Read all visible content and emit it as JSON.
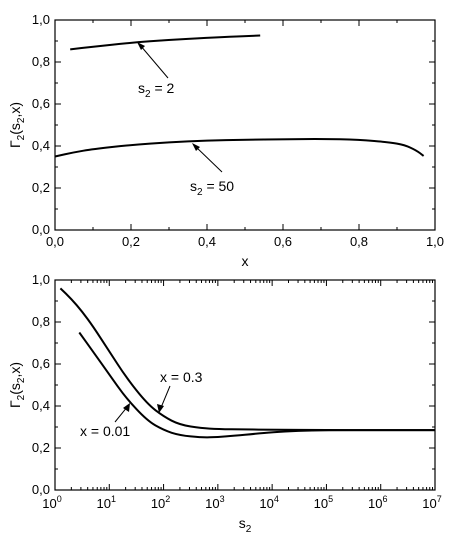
{
  "chart_data": [
    {
      "type": "line",
      "xlabel": "x",
      "ylabel": "Γ2(s2, x)",
      "xlim": [
        0.0,
        1.0
      ],
      "ylim": [
        0.0,
        1.0
      ],
      "grid": false,
      "x_ticks": [
        "0,0",
        "0,2",
        "0,4",
        "0,6",
        "0,8",
        "1,0"
      ],
      "y_ticks": [
        "0,0",
        "0,2",
        "0,4",
        "0,6",
        "0,8",
        "1,0"
      ],
      "series": [
        {
          "label": "s2 = 2",
          "points": [
            [
              0.04,
              0.86
            ],
            [
              0.1,
              0.873
            ],
            [
              0.2,
              0.892
            ],
            [
              0.3,
              0.905
            ],
            [
              0.4,
              0.915
            ],
            [
              0.48,
              0.922
            ],
            [
              0.54,
              0.926
            ]
          ]
        },
        {
          "label": "s2 = 50",
          "points": [
            [
              0.0,
              0.35
            ],
            [
              0.05,
              0.37
            ],
            [
              0.1,
              0.385
            ],
            [
              0.2,
              0.405
            ],
            [
              0.3,
              0.418
            ],
            [
              0.4,
              0.426
            ],
            [
              0.5,
              0.43
            ],
            [
              0.6,
              0.432
            ],
            [
              0.7,
              0.434
            ],
            [
              0.8,
              0.43
            ],
            [
              0.88,
              0.418
            ],
            [
              0.92,
              0.405
            ],
            [
              0.95,
              0.38
            ],
            [
              0.97,
              0.353
            ]
          ]
        }
      ],
      "annotations": [
        {
          "text_main": "s",
          "text_sub": "2",
          "text_rest": " = 2",
          "points_to": [
            0.23,
            0.9
          ]
        },
        {
          "text_main": "s",
          "text_sub": "2",
          "text_rest": " = 50",
          "points_to": [
            0.37,
            0.43
          ]
        }
      ]
    },
    {
      "type": "line",
      "xlabel": "s2",
      "ylabel": "Γ2(s2, x)",
      "xscale": "log",
      "xlim": [
        1,
        10000000
      ],
      "ylim": [
        0.0,
        1.0
      ],
      "grid": false,
      "x_ticks": [
        {
          "base": "10",
          "exp": "0"
        },
        {
          "base": "10",
          "exp": "1"
        },
        {
          "base": "10",
          "exp": "2"
        },
        {
          "base": "10",
          "exp": "3"
        },
        {
          "base": "10",
          "exp": "4"
        },
        {
          "base": "10",
          "exp": "5"
        },
        {
          "base": "10",
          "exp": "6"
        },
        {
          "base": "10",
          "exp": "7"
        }
      ],
      "y_ticks": [
        "0,0",
        "0,2",
        "0,4",
        "0,6",
        "0,8",
        "1,0"
      ],
      "series": [
        {
          "label": "x = 0.3",
          "points": [
            [
              1.26,
              0.96
            ],
            [
              2,
              0.91
            ],
            [
              3.16,
              0.85
            ],
            [
              5,
              0.78
            ],
            [
              10,
              0.66
            ],
            [
              20,
              0.54
            ],
            [
              50,
              0.41
            ],
            [
              100,
              0.35
            ],
            [
              200,
              0.31
            ],
            [
              500,
              0.295
            ],
            [
              1000,
              0.29
            ],
            [
              3162,
              0.288
            ],
            [
              10000,
              0.287
            ],
            [
              100000,
              0.285
            ],
            [
              1000000,
              0.285
            ],
            [
              10000000,
              0.285
            ]
          ]
        },
        {
          "label": "x = 0.01",
          "points": [
            [
              2.8,
              0.75
            ],
            [
              5,
              0.66
            ],
            [
              10,
              0.55
            ],
            [
              20,
              0.44
            ],
            [
              50,
              0.33
            ],
            [
              100,
              0.285
            ],
            [
              200,
              0.26
            ],
            [
              500,
              0.25
            ],
            [
              1000,
              0.252
            ],
            [
              2000,
              0.258
            ],
            [
              5000,
              0.268
            ],
            [
              10000,
              0.275
            ],
            [
              30000,
              0.282
            ],
            [
              100000,
              0.285
            ],
            [
              1000000,
              0.285
            ],
            [
              10000000,
              0.285
            ]
          ]
        }
      ],
      "annotations": [
        {
          "text": "x = 0.3",
          "points_to": [
            150,
            0.325
          ]
        },
        {
          "text": "x = 0.01",
          "points_to": [
            30,
            0.4
          ]
        }
      ]
    }
  ]
}
